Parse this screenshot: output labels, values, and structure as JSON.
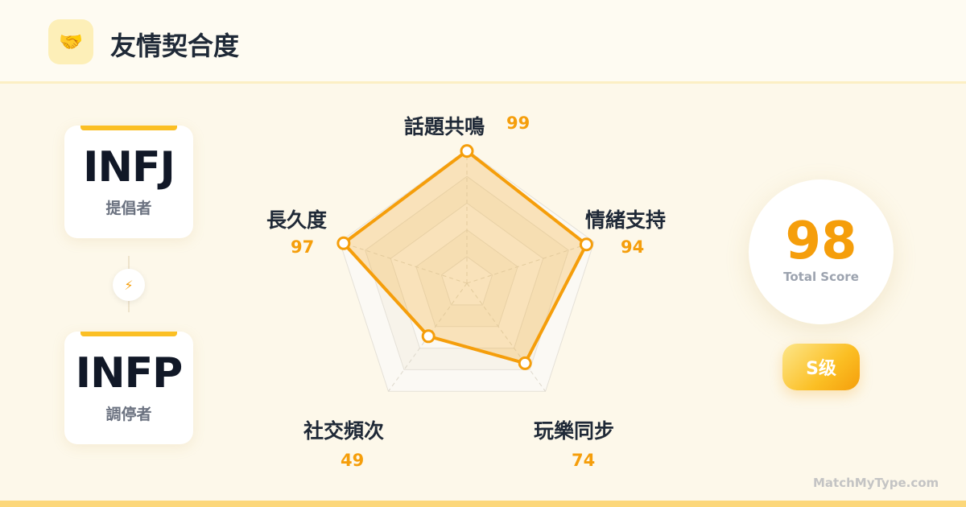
{
  "header": {
    "title": "友情契合度",
    "icon": "handshake-icon",
    "icon_glyph": "🤝"
  },
  "types": [
    {
      "code": "INFJ",
      "role": "提倡者"
    },
    {
      "code": "INFP",
      "role": "調停者"
    }
  ],
  "link_icon": "⚡",
  "chart_data": {
    "type": "radar",
    "categories": [
      "話題共鳴",
      "情緒支持",
      "玩樂同步",
      "社交頻次",
      "長久度"
    ],
    "values": [
      99,
      94,
      74,
      49,
      97
    ],
    "range": [
      0,
      100
    ],
    "grid_levels": [
      20,
      40,
      60,
      80,
      100
    ],
    "color": "#f59e0b"
  },
  "score": {
    "value": "98",
    "caption": "Total Score",
    "grade": "S级"
  },
  "footer": "MatchMyType.com"
}
